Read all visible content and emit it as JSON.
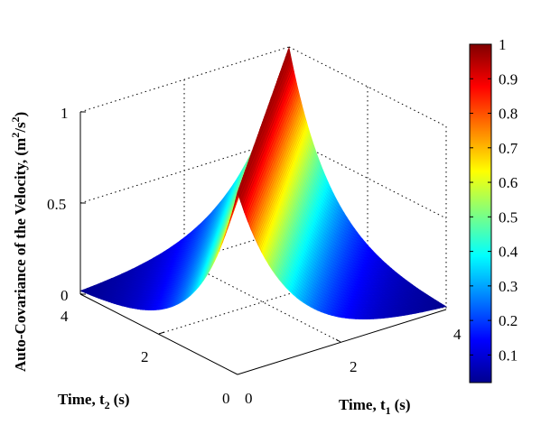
{
  "chart_data": {
    "type": "surface3d",
    "function": "z = exp(-|t1 - t2|)",
    "x_label": "Time, t",
    "x_label_sub": "1",
    "x_label_unit": "(s)",
    "y_label": "Time, t",
    "y_label_sub": "2",
    "y_label_unit": "(s)",
    "z_label": "Auto-Covariance of the Velocity, (m",
    "z_label_sup1": "2",
    "z_label_mid": "/s",
    "z_label_sup2": "2",
    "z_label_end": ")",
    "x_range": [
      0,
      4
    ],
    "y_range": [
      0,
      4
    ],
    "z_range": [
      0,
      1
    ],
    "x_ticks": [
      "0",
      "2",
      "4"
    ],
    "y_ticks": [
      "0",
      "2",
      "4"
    ],
    "z_ticks": [
      "0",
      "0.5",
      "1"
    ],
    "colorbar": {
      "colormap": "jet",
      "range": [
        0.02,
        1
      ],
      "ticks": [
        "0.1",
        "0.2",
        "0.3",
        "0.4",
        "0.5",
        "0.6",
        "0.7",
        "0.8",
        "0.9",
        "1"
      ],
      "tick_values": [
        0.1,
        0.2,
        0.3,
        0.4,
        0.5,
        0.6,
        0.7,
        0.8,
        0.9,
        1.0
      ]
    },
    "surface_samples": {
      "t1": [
        0,
        1,
        2,
        3,
        4
      ],
      "t2": [
        0,
        1,
        2,
        3,
        4
      ],
      "z": [
        [
          1.0,
          0.368,
          0.135,
          0.05,
          0.018
        ],
        [
          0.368,
          1.0,
          0.368,
          0.135,
          0.05
        ],
        [
          0.135,
          0.368,
          1.0,
          0.368,
          0.135
        ],
        [
          0.05,
          0.135,
          0.368,
          1.0,
          0.368
        ],
        [
          0.018,
          0.05,
          0.135,
          0.368,
          1.0
        ]
      ]
    },
    "grid": true
  }
}
